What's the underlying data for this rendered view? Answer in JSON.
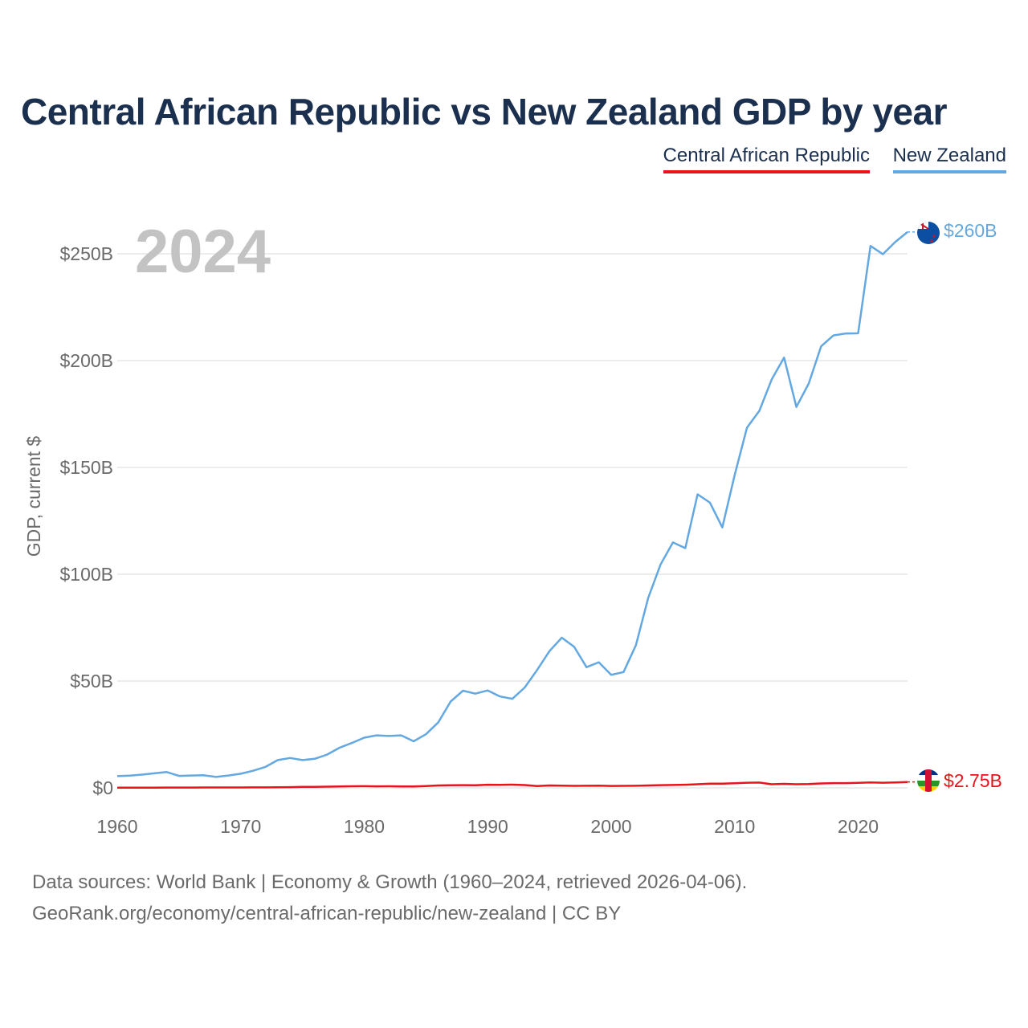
{
  "title": "Central African Republic vs New Zealand GDP by year",
  "legend": [
    {
      "label": "Central African Republic",
      "color": "#e8141b"
    },
    {
      "label": "New Zealand",
      "color": "#64a8e2"
    }
  ],
  "year_label": "2024",
  "end_labels": {
    "new_zealand": "$260B",
    "car": "$2.75B"
  },
  "flags": {
    "new_zealand": "new-zealand-flag-icon",
    "car": "central-african-republic-flag-icon"
  },
  "source_line_1": "Data sources: World Bank | Economy & Growth (1960–2024, retrieved 2026-04-06).",
  "source_line_2": "GeoRank.org/economy/central-african-republic/new-zealand | CC BY",
  "chart_data": {
    "type": "line",
    "title": "Central African Republic vs New Zealand GDP by year",
    "xlabel": "",
    "ylabel": "GDP, current $",
    "xlim": [
      1960,
      2024
    ],
    "ylim": [
      0,
      260
    ],
    "x_ticks": [
      1960,
      1970,
      1980,
      1990,
      2000,
      2010,
      2020
    ],
    "x_tick_labels": [
      "1960",
      "1970",
      "1980",
      "1990",
      "2000",
      "2010",
      "2020"
    ],
    "y_ticks": [
      0,
      50,
      100,
      150,
      200,
      250
    ],
    "y_tick_labels": [
      "$0",
      "$50B",
      "$100B",
      "$150B",
      "$200B",
      "$250B"
    ],
    "grid": true,
    "x": [
      1960,
      1961,
      1962,
      1963,
      1964,
      1965,
      1966,
      1967,
      1968,
      1969,
      1970,
      1971,
      1972,
      1973,
      1974,
      1975,
      1976,
      1977,
      1978,
      1979,
      1980,
      1981,
      1982,
      1983,
      1984,
      1985,
      1986,
      1987,
      1988,
      1989,
      1990,
      1991,
      1992,
      1993,
      1994,
      1995,
      1996,
      1997,
      1998,
      1999,
      2000,
      2001,
      2002,
      2003,
      2004,
      2005,
      2006,
      2007,
      2008,
      2009,
      2010,
      2011,
      2012,
      2013,
      2014,
      2015,
      2016,
      2017,
      2018,
      2019,
      2020,
      2021,
      2022,
      2023,
      2024
    ],
    "series": [
      {
        "name": "New Zealand",
        "color": "#64a8e2",
        "values": [
          5.5,
          5.7,
          6.2,
          6.8,
          7.4,
          5.6,
          5.8,
          5.9,
          5.1,
          5.8,
          6.6,
          8.0,
          9.8,
          13.0,
          14.0,
          13.0,
          13.6,
          15.6,
          18.8,
          21.0,
          23.5,
          24.6,
          24.3,
          24.6,
          21.8,
          25.1,
          30.7,
          40.4,
          45.5,
          44.1,
          45.6,
          42.8,
          41.7,
          47.0,
          55.2,
          64.0,
          70.3,
          66.0,
          56.5,
          58.8,
          52.9,
          54.2,
          66.8,
          88.9,
          104.6,
          114.9,
          112.2,
          137.4,
          133.5,
          121.9,
          146.5,
          168.6,
          176.5,
          191.2,
          201.4,
          178.3,
          189.3,
          206.7,
          211.8,
          212.7,
          212.8,
          253.7,
          249.8,
          255.5,
          260.2
        ]
      },
      {
        "name": "Central African Republic",
        "color": "#e8141b",
        "values": [
          0.11,
          0.11,
          0.12,
          0.13,
          0.14,
          0.15,
          0.16,
          0.17,
          0.18,
          0.19,
          0.19,
          0.21,
          0.24,
          0.29,
          0.33,
          0.44,
          0.5,
          0.55,
          0.64,
          0.74,
          0.8,
          0.7,
          0.75,
          0.68,
          0.63,
          0.86,
          1.12,
          1.21,
          1.26,
          1.24,
          1.48,
          1.43,
          1.49,
          1.3,
          0.85,
          1.12,
          1.04,
          0.94,
          0.98,
          1.05,
          0.91,
          0.93,
          0.99,
          1.14,
          1.27,
          1.35,
          1.47,
          1.7,
          1.98,
          1.98,
          2.14,
          2.41,
          2.49,
          1.69,
          1.89,
          1.7,
          1.82,
          2.07,
          2.22,
          2.22,
          2.38,
          2.52,
          2.4,
          2.55,
          2.75
        ]
      }
    ]
  }
}
